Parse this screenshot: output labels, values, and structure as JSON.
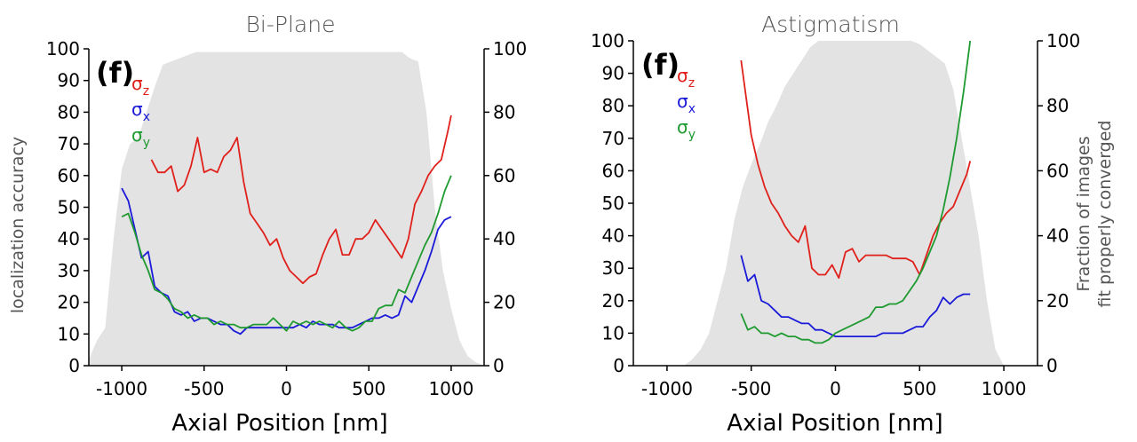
{
  "chart_data": [
    {
      "type": "line",
      "title": "Bi-Plane",
      "panel_label": "(f)",
      "xlabel": "Axial Position [nm]",
      "ylabel": "localization accuracy",
      "y2label": [
        "",
        ""
      ],
      "xlim": [
        -1200,
        1200
      ],
      "ylim": [
        0,
        100
      ],
      "y2lim": [
        0,
        100
      ],
      "x_ticks": [
        "-1000",
        "-500",
        "0",
        "500",
        "1000"
      ],
      "y_ticks": [
        "0",
        "10",
        "20",
        "30",
        "40",
        "50",
        "60",
        "70",
        "80",
        "90",
        "100"
      ],
      "y2_ticks": [
        "0",
        "20",
        "40",
        "60",
        "80",
        "100"
      ],
      "legend": [
        {
          "base": "σ",
          "sub": "z",
          "color": "#e0201b"
        },
        {
          "base": "σ",
          "sub": "x",
          "color": "#1a1ad8"
        },
        {
          "base": "σ",
          "sub": "y",
          "color": "#1f9a30"
        }
      ],
      "background_area": {
        "name": "Fraction of images fit properly converged",
        "color": "#e3e3e3",
        "x": [
          -1200,
          -1150,
          -1100,
          -1050,
          -1000,
          -950,
          -900,
          -850,
          -800,
          -750,
          -700,
          -650,
          -600,
          -550,
          -500,
          -450,
          -400,
          -350,
          -300,
          -250,
          -200,
          -150,
          -100,
          -50,
          0,
          50,
          100,
          150,
          200,
          250,
          300,
          350,
          400,
          450,
          500,
          550,
          600,
          650,
          700,
          750,
          800,
          850,
          900,
          950,
          1000,
          1050,
          1100,
          1150,
          1200
        ],
        "y": [
          2,
          8,
          12,
          40,
          62,
          70,
          72,
          80,
          88,
          95,
          96,
          97,
          98,
          99,
          99,
          99,
          99,
          99,
          99,
          99,
          99,
          99,
          99,
          99,
          99,
          99,
          99,
          99,
          99,
          99,
          99,
          99,
          99,
          99,
          99,
          99,
          99,
          99,
          99,
          97,
          96,
          80,
          50,
          30,
          18,
          8,
          3,
          1,
          0
        ]
      },
      "series": [
        {
          "name": "σz",
          "color": "#e0201b",
          "x": [
            -820,
            -780,
            -740,
            -700,
            -660,
            -620,
            -580,
            -540,
            -500,
            -460,
            -420,
            -380,
            -340,
            -300,
            -260,
            -220,
            -180,
            -140,
            -100,
            -60,
            -20,
            20,
            60,
            100,
            140,
            180,
            220,
            260,
            300,
            340,
            380,
            420,
            460,
            500,
            540,
            580,
            620,
            660,
            700,
            740,
            780,
            820,
            860,
            900,
            940,
            980,
            1000
          ],
          "y": [
            65,
            61,
            61,
            63,
            55,
            57,
            63,
            72,
            61,
            62,
            61,
            66,
            68,
            72,
            58,
            48,
            45,
            42,
            38,
            40,
            34,
            30,
            28,
            26,
            28,
            29,
            35,
            40,
            43,
            35,
            35,
            40,
            40,
            42,
            46,
            43,
            40,
            37,
            34,
            40,
            51,
            55,
            60,
            63,
            65,
            74,
            79
          ]
        },
        {
          "name": "σx",
          "color": "#1a1ad8",
          "x": [
            -1000,
            -960,
            -920,
            -880,
            -840,
            -800,
            -760,
            -720,
            -680,
            -640,
            -600,
            -560,
            -520,
            -480,
            -440,
            -400,
            -360,
            -320,
            -280,
            -240,
            -200,
            -160,
            -120,
            -80,
            -40,
            0,
            40,
            80,
            120,
            160,
            200,
            240,
            280,
            320,
            360,
            400,
            440,
            480,
            520,
            560,
            600,
            640,
            680,
            720,
            760,
            800,
            840,
            880,
            920,
            960,
            1000
          ],
          "y": [
            56,
            52,
            43,
            34,
            36,
            25,
            23,
            22,
            17,
            16,
            17,
            14,
            15,
            15,
            14,
            13,
            13,
            11,
            10,
            12,
            12,
            12,
            12,
            12,
            12,
            12,
            12,
            13,
            12,
            14,
            13,
            13,
            13,
            12,
            12,
            12,
            13,
            14,
            15,
            15,
            16,
            15,
            16,
            22,
            20,
            25,
            30,
            36,
            43,
            46,
            47
          ]
        },
        {
          "name": "σy",
          "color": "#1f9a30",
          "x": [
            -1000,
            -960,
            -920,
            -880,
            -840,
            -800,
            -760,
            -720,
            -680,
            -640,
            -600,
            -560,
            -520,
            -480,
            -440,
            -400,
            -360,
            -320,
            -280,
            -240,
            -200,
            -160,
            -120,
            -80,
            -40,
            0,
            40,
            80,
            120,
            160,
            200,
            240,
            280,
            320,
            360,
            400,
            440,
            480,
            520,
            560,
            600,
            640,
            680,
            720,
            760,
            800,
            840,
            880,
            920,
            960,
            1000
          ],
          "y": [
            47,
            48,
            42,
            35,
            30,
            24,
            23,
            21,
            18,
            17,
            15,
            16,
            15,
            15,
            13,
            14,
            13,
            13,
            12,
            12,
            13,
            13,
            13,
            15,
            13,
            11,
            14,
            13,
            14,
            13,
            14,
            13,
            12,
            14,
            12,
            11,
            12,
            14,
            14,
            18,
            19,
            19,
            24,
            23,
            28,
            33,
            38,
            42,
            48,
            55,
            60
          ]
        }
      ]
    },
    {
      "type": "line",
      "title": "Astigmatism",
      "panel_label": "(f)",
      "xlabel": "Axial Position [nm]",
      "ylabel": "",
      "y2label": [
        "Fraction of images",
        "fit properly converged"
      ],
      "xlim": [
        -1200,
        1200
      ],
      "ylim": [
        0,
        100
      ],
      "y2lim": [
        0,
        100
      ],
      "x_ticks": [
        "-1000",
        "-500",
        "0",
        "500",
        "1000"
      ],
      "y_ticks": [
        "0",
        "10",
        "20",
        "30",
        "40",
        "50",
        "60",
        "70",
        "80",
        "90",
        "100"
      ],
      "y2_ticks": [
        "0",
        "20",
        "40",
        "60",
        "80",
        "100"
      ],
      "legend": [
        {
          "base": "σ",
          "sub": "z",
          "color": "#e0201b"
        },
        {
          "base": "σ",
          "sub": "x",
          "color": "#1a1ad8"
        },
        {
          "base": "σ",
          "sub": "y",
          "color": "#1f9a30"
        }
      ],
      "background_area": {
        "name": "Fraction of images fit properly converged",
        "color": "#e3e3e3",
        "x": [
          -1000,
          -900,
          -850,
          -800,
          -750,
          -700,
          -650,
          -600,
          -550,
          -500,
          -450,
          -400,
          -350,
          -300,
          -250,
          -200,
          -150,
          -100,
          -50,
          0,
          50,
          100,
          150,
          200,
          250,
          300,
          350,
          400,
          450,
          500,
          550,
          600,
          650,
          700,
          750,
          800,
          850,
          900,
          950,
          1000
        ],
        "y": [
          0,
          0,
          2,
          5,
          10,
          20,
          30,
          45,
          55,
          62,
          68,
          75,
          80,
          86,
          90,
          94,
          98,
          100,
          100,
          100,
          100,
          100,
          100,
          100,
          100,
          100,
          100,
          100,
          100,
          99,
          97,
          95,
          93,
          85,
          70,
          55,
          40,
          20,
          5,
          0
        ]
      },
      "series": [
        {
          "name": "σz",
          "color": "#e0201b",
          "x": [
            -560,
            -500,
            -460,
            -420,
            -380,
            -340,
            -300,
            -260,
            -220,
            -180,
            -140,
            -100,
            -60,
            -20,
            20,
            60,
            100,
            140,
            180,
            220,
            260,
            300,
            340,
            380,
            420,
            460,
            500,
            540,
            580,
            620,
            660,
            700,
            740,
            780,
            800
          ],
          "y": [
            94,
            71,
            62,
            55,
            50,
            47,
            43,
            40,
            38,
            43,
            30,
            28,
            28,
            31,
            27,
            35,
            36,
            32,
            34,
            34,
            34,
            34,
            33,
            33,
            33,
            32,
            28,
            34,
            40,
            44,
            47,
            49,
            54,
            59,
            63
          ]
        },
        {
          "name": "σx",
          "color": "#1a1ad8",
          "x": [
            -560,
            -520,
            -480,
            -440,
            -400,
            -360,
            -320,
            -280,
            -240,
            -200,
            -160,
            -120,
            -80,
            -40,
            0,
            40,
            80,
            120,
            160,
            200,
            240,
            280,
            320,
            360,
            400,
            440,
            480,
            520,
            560,
            600,
            640,
            680,
            720,
            760,
            800
          ],
          "y": [
            34,
            26,
            28,
            20,
            19,
            17,
            15,
            15,
            14,
            13,
            13,
            11,
            11,
            10,
            9,
            9,
            9,
            9,
            9,
            9,
            9,
            10,
            10,
            10,
            10,
            11,
            12,
            12,
            15,
            17,
            21,
            19,
            21,
            22,
            22
          ]
        },
        {
          "name": "σy",
          "color": "#1f9a30",
          "x": [
            -560,
            -520,
            -480,
            -440,
            -400,
            -360,
            -320,
            -280,
            -240,
            -200,
            -160,
            -120,
            -80,
            -40,
            0,
            40,
            80,
            120,
            160,
            200,
            240,
            280,
            320,
            360,
            400,
            440,
            480,
            520,
            560,
            600,
            640,
            680,
            720,
            760,
            800
          ],
          "y": [
            16,
            11,
            12,
            10,
            10,
            9,
            10,
            9,
            9,
            8,
            8,
            7,
            7,
            8,
            10,
            11,
            12,
            13,
            14,
            15,
            18,
            18,
            19,
            19,
            20,
            23,
            26,
            30,
            35,
            40,
            48,
            58,
            70,
            84,
            100
          ]
        }
      ]
    }
  ]
}
